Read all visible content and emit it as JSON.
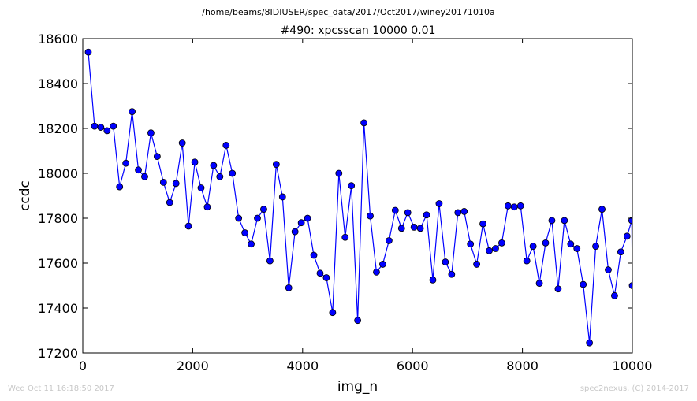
{
  "header": {
    "path": "/home/beams/8IDIUSER/spec_data/2017/Oct2017/winey20171010a"
  },
  "footer": {
    "timestamp": "Wed Oct 11 16:18:50 2017",
    "credit": "spec2nexus, (C) 2014-2017"
  },
  "colors": {
    "line": "#0000ff",
    "marker": "#0000ff",
    "footer_text": "#c8c8c8"
  },
  "chart_data": {
    "type": "line",
    "title": "#490: xpcsscan 10000 0.01",
    "xlabel": "img_n",
    "ylabel": "ccdc",
    "xlim": [
      0,
      10000
    ],
    "ylim": [
      17200,
      18600
    ],
    "xticks": [
      0,
      2000,
      4000,
      6000,
      8000,
      10000
    ],
    "yticks": [
      17200,
      17400,
      17600,
      17800,
      18000,
      18200,
      18400,
      18600
    ],
    "grid": false,
    "legend": "none",
    "marker": "circle",
    "series": [
      {
        "x": [
          100,
          214,
          328,
          442,
          556,
          670,
          784,
          898,
          1012,
          1126,
          1240,
          1354,
          1468,
          1582,
          1696,
          1810,
          1924,
          2038,
          2152,
          2266,
          2380,
          2494,
          2608,
          2722,
          2836,
          2950,
          3064,
          3178,
          3292,
          3406,
          3520,
          3634,
          3748,
          3862,
          3976,
          4090,
          4204,
          4318,
          4432,
          4546,
          4660,
          4774,
          4888,
          5002,
          5116,
          5230,
          5344,
          5458,
          5572,
          5686,
          5800,
          5914,
          6028,
          6142,
          6256,
          6370,
          6484,
          6598,
          6712,
          6826,
          6940,
          7054,
          7168,
          7282,
          7396,
          7510,
          7624,
          7738,
          7852,
          7966,
          8080,
          8194,
          8308,
          8422,
          8536,
          8650,
          8764,
          8878,
          8992,
          9106,
          9220,
          9334,
          9448,
          9562,
          9676,
          9790,
          9904,
          9990,
          10000
        ],
        "y": [
          18540,
          18210,
          18205,
          18190,
          18210,
          17940,
          18045,
          18275,
          18015,
          17985,
          18180,
          18075,
          17960,
          17870,
          17955,
          18135,
          17765,
          18050,
          17935,
          17850,
          18035,
          17985,
          18125,
          18000,
          17800,
          17735,
          17685,
          17800,
          17840,
          17610,
          18040,
          17895,
          17490,
          17740,
          17780,
          17800,
          17635,
          17555,
          17535,
          17380,
          18000,
          17715,
          17945,
          17345,
          18225,
          17810,
          17560,
          17595,
          17700,
          17835,
          17755,
          17825,
          17760,
          17755,
          17815,
          17525,
          17865,
          17605,
          17550,
          17825,
          17830,
          17685,
          17595,
          17775,
          17655,
          17665,
          17690,
          17855,
          17850,
          17855,
          17610,
          17675,
          17510,
          17690,
          17790,
          17485,
          17790,
          17685,
          17665,
          17505,
          17245,
          17675,
          17840,
          17570,
          17455,
          17650,
          17720,
          17790,
          17500
        ]
      }
    ]
  }
}
